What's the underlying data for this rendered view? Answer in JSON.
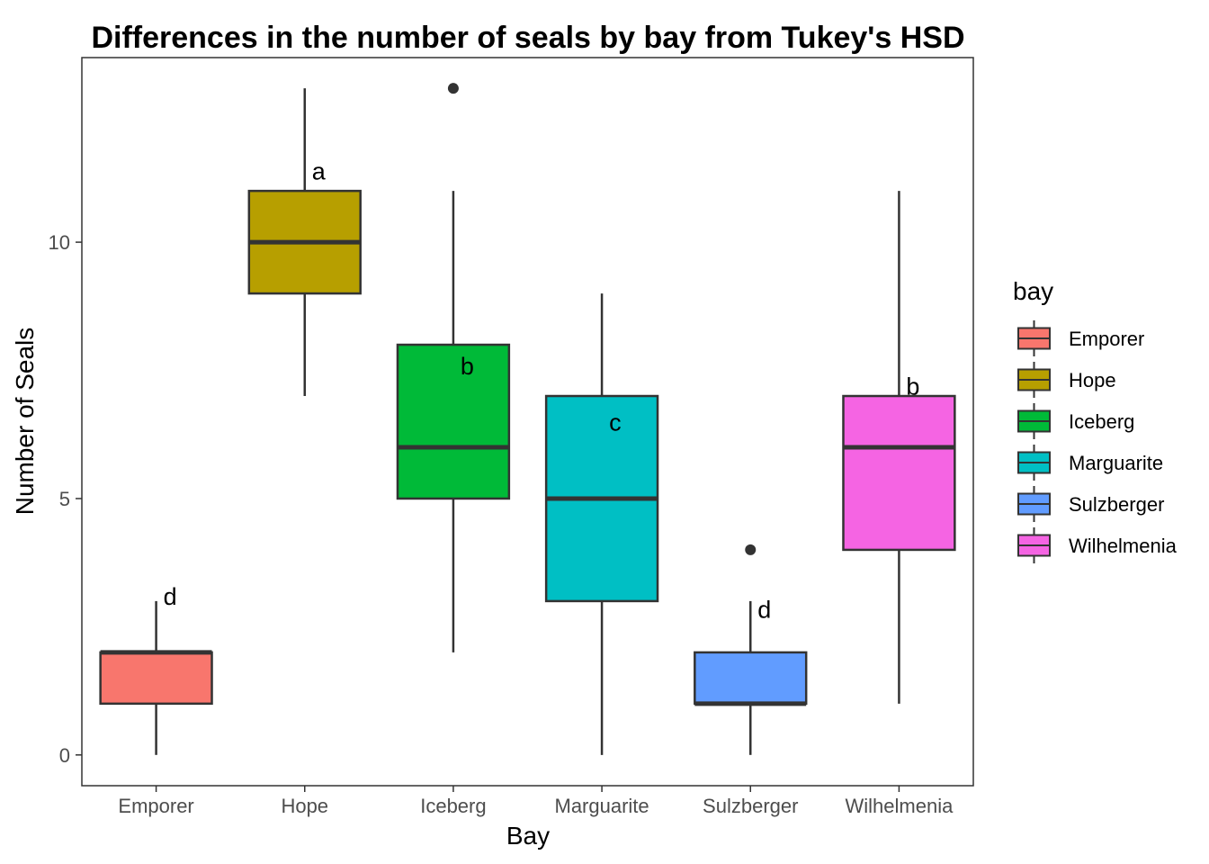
{
  "chart_data": {
    "type": "box",
    "title": "Differences in the number of seals by bay from Tukey's HSD",
    "xlabel": "Bay",
    "ylabel": "Number of Seals",
    "ylim": [
      -0.6,
      13.6
    ],
    "yticks": [
      0,
      5,
      10
    ],
    "grid": false,
    "legend": {
      "title": "bay",
      "placement": "right"
    },
    "categories": [
      "Emporer",
      "Hope",
      "Iceberg",
      "Marguarite",
      "Sulzberger",
      "Wilhelmenia"
    ],
    "colors": [
      "#F8766D",
      "#B79F00",
      "#00BA38",
      "#00BFC4",
      "#619CFF",
      "#F564E3"
    ],
    "boxes": [
      {
        "name": "Emporer",
        "min": 0,
        "q1": 1,
        "median": 2,
        "q3": 2,
        "max": 3,
        "outliers": [],
        "letter": "d",
        "letter_y": 3.1
      },
      {
        "name": "Hope",
        "min": 7,
        "q1": 9,
        "median": 10,
        "q3": 11,
        "max": 13,
        "outliers": [],
        "letter": "a",
        "letter_y": 11.4
      },
      {
        "name": "Iceberg",
        "min": 2,
        "q1": 5,
        "median": 6,
        "q3": 8,
        "max": 11,
        "outliers": [
          13
        ],
        "letter": "b",
        "letter_y": 7.6
      },
      {
        "name": "Marguarite",
        "min": 0,
        "q1": 3,
        "median": 5,
        "q3": 7,
        "max": 9,
        "outliers": [],
        "letter": "c",
        "letter_y": 6.5
      },
      {
        "name": "Sulzberger",
        "min": 0,
        "q1": 1,
        "median": 1,
        "q3": 2,
        "max": 3,
        "outliers": [
          4
        ],
        "letter": "d",
        "letter_y": 2.85
      },
      {
        "name": "Wilhelmenia",
        "min": 1,
        "q1": 4,
        "median": 6,
        "q3": 7,
        "max": 11,
        "outliers": [],
        "letter": "b",
        "letter_y": 7.2
      }
    ]
  }
}
